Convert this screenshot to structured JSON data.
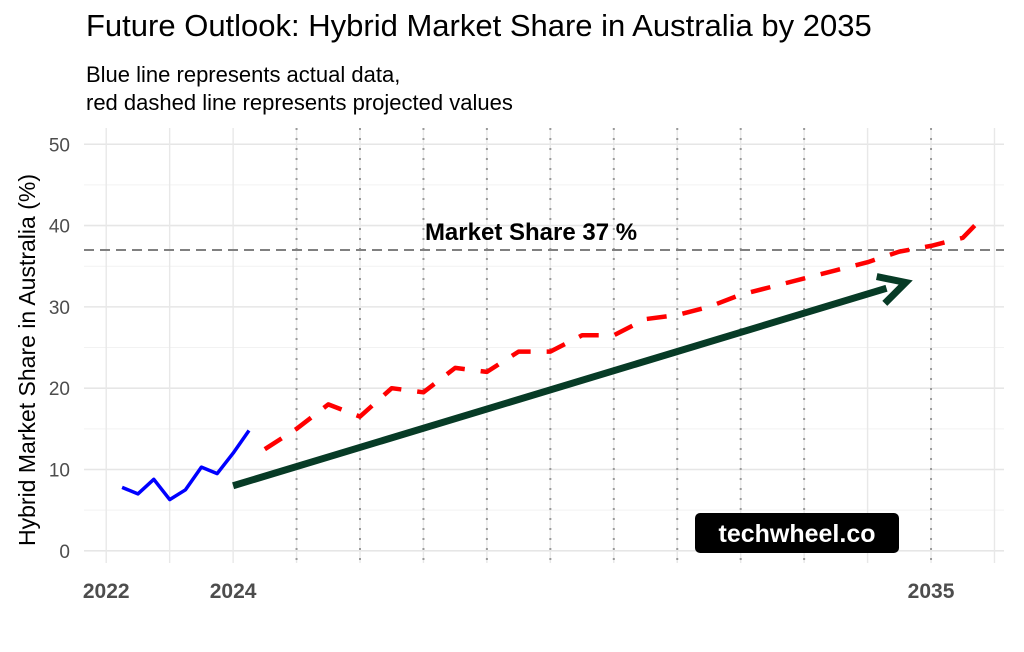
{
  "chart_data": {
    "type": "line",
    "title": "Future Outlook: Hybrid Market Share in Australia by 2035",
    "subtitle": [
      "Blue line represents actual data,",
      "red dashed line represents projected values"
    ],
    "xlabel": "",
    "ylabel": "Hybrid Market Share in Australia (%)",
    "x_ticks": [
      "2022",
      "2024",
      "2035"
    ],
    "x_tick_values": [
      2022,
      2024,
      2035
    ],
    "y_ticks": [
      0,
      10,
      20,
      30,
      40,
      50
    ],
    "xlim": [
      2021.65,
      2036.15
    ],
    "ylim": [
      -1.5,
      52
    ],
    "grid": true,
    "series": [
      {
        "style": "solid",
        "color": "#0000ff",
        "x": [
          2022.25,
          2022.5,
          2022.75,
          2023.0,
          2023.25,
          2023.5,
          2023.75,
          2024.0,
          2024.25
        ],
        "values": [
          7.8,
          7.0,
          8.8,
          6.3,
          7.5,
          10.3,
          9.5,
          12.0,
          14.8
        ]
      },
      {
        "style": "dashed",
        "color": "#ff0000",
        "x": [
          2024.5,
          2025.0,
          2025.5,
          2026.0,
          2026.5,
          2027.0,
          2027.5,
          2028.0,
          2028.5,
          2029.0,
          2029.5,
          2030.0,
          2030.5,
          2031.0,
          2031.5,
          2032.0,
          2032.5,
          2033.0,
          2033.5,
          2034.0,
          2034.5,
          2035.0,
          2035.5,
          2035.75
        ],
        "values": [
          12.5,
          15.0,
          18.0,
          16.5,
          20.0,
          19.5,
          22.5,
          22.0,
          24.5,
          24.5,
          26.5,
          26.5,
          28.5,
          29.0,
          30.0,
          31.5,
          32.5,
          33.5,
          34.5,
          35.5,
          36.8,
          37.5,
          38.5,
          40.5
        ]
      }
    ],
    "vertical_lines": [
      2025,
      2026,
      2027,
      2028,
      2029,
      2030,
      2031,
      2032,
      2033,
      2035
    ],
    "hline": {
      "y": 37,
      "label": "Market Share 37 %"
    },
    "arrow": {
      "x1": 2024.0,
      "y1": 8.0,
      "x2": 2034.6,
      "y2": 33.0,
      "color": "#073b26"
    },
    "watermark": "techwheel.co"
  }
}
